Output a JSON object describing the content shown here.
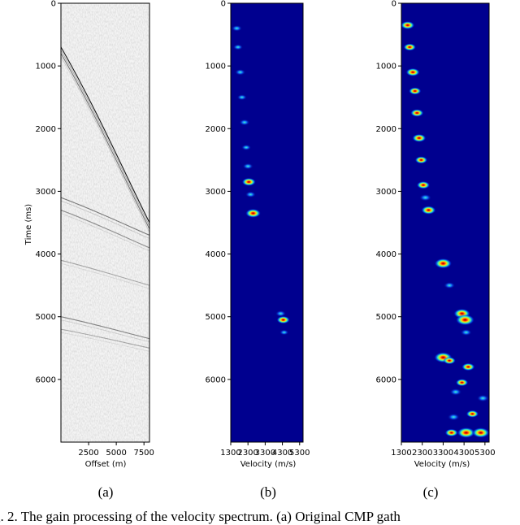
{
  "chart_data": [
    {
      "panel": "(a)",
      "type": "heatmap",
      "content": "seismic CMP gather (grayscale wiggle image)",
      "xlabel": "Offset (m)",
      "ylabel": "Time (ms)",
      "xticks": [
        "2500",
        "5000",
        "7500"
      ],
      "yticks": [
        "0",
        "1000",
        "2000",
        "3000",
        "4000",
        "5000",
        "6000"
      ],
      "xlim": [
        0,
        8000
      ],
      "ylim": [
        7000,
        0
      ],
      "colormap": "gray",
      "events": [
        {
          "t0": 700,
          "t_end": 3500,
          "strength": 0.9
        },
        {
          "t0": 800,
          "t_end": 3600,
          "strength": 0.5
        },
        {
          "t0": 3100,
          "t_end": 3700,
          "strength": 0.5
        },
        {
          "t0": 3300,
          "t_end": 3900,
          "strength": 0.4
        },
        {
          "t0": 4100,
          "t_end": 4500,
          "strength": 0.3
        },
        {
          "t0": 5000,
          "t_end": 5350,
          "strength": 0.45
        },
        {
          "t0": 5200,
          "t_end": 5500,
          "strength": 0.3
        }
      ]
    },
    {
      "panel": "(b)",
      "type": "heatmap",
      "content": "velocity spectrum",
      "xlabel": "Velocity (m/s)",
      "xticks": [
        "1300",
        "2300",
        "3300",
        "4300",
        "5300"
      ],
      "yticks": [
        "0",
        "1000",
        "2000",
        "3000",
        "4000",
        "5000",
        "6000"
      ],
      "xlim": [
        1300,
        5500
      ],
      "ylim": [
        7000,
        0
      ],
      "colormap": "jet",
      "peaks": [
        {
          "v": 1650,
          "t": 400,
          "a": 0.35
        },
        {
          "v": 1720,
          "t": 700,
          "a": 0.3
        },
        {
          "v": 1850,
          "t": 1100,
          "a": 0.35
        },
        {
          "v": 1950,
          "t": 1500,
          "a": 0.3
        },
        {
          "v": 2100,
          "t": 1900,
          "a": 0.35
        },
        {
          "v": 2200,
          "t": 2300,
          "a": 0.3
        },
        {
          "v": 2300,
          "t": 2600,
          "a": 0.35
        },
        {
          "v": 2350,
          "t": 2850,
          "a": 0.6
        },
        {
          "v": 2450,
          "t": 3050,
          "a": 0.35
        },
        {
          "v": 2600,
          "t": 3350,
          "a": 0.7
        },
        {
          "v": 4200,
          "t": 4950,
          "a": 0.35
        },
        {
          "v": 4350,
          "t": 5050,
          "a": 0.55
        },
        {
          "v": 4400,
          "t": 5250,
          "a": 0.25
        }
      ]
    },
    {
      "panel": "(c)",
      "type": "heatmap",
      "content": "gain-processed velocity spectrum",
      "xlabel": "Velocity (m/s)",
      "xticks": [
        "1300",
        "2300",
        "3300",
        "4300",
        "5300"
      ],
      "yticks": [
        "0",
        "1000",
        "2000",
        "3000",
        "4000",
        "5000",
        "6000"
      ],
      "xlim": [
        1300,
        5500
      ],
      "ylim": [
        7000,
        0
      ],
      "colormap": "jet",
      "peaks": [
        {
          "v": 1600,
          "t": 350,
          "a": 0.6
        },
        {
          "v": 1700,
          "t": 700,
          "a": 0.5
        },
        {
          "v": 1850,
          "t": 1100,
          "a": 0.6
        },
        {
          "v": 1950,
          "t": 1400,
          "a": 0.5
        },
        {
          "v": 2050,
          "t": 1750,
          "a": 0.55
        },
        {
          "v": 2150,
          "t": 2150,
          "a": 0.6
        },
        {
          "v": 2250,
          "t": 2500,
          "a": 0.5
        },
        {
          "v": 2350,
          "t": 2900,
          "a": 0.55
        },
        {
          "v": 2450,
          "t": 3100,
          "a": 0.45
        },
        {
          "v": 2600,
          "t": 3300,
          "a": 0.65
        },
        {
          "v": 3300,
          "t": 4150,
          "a": 0.85
        },
        {
          "v": 3600,
          "t": 4500,
          "a": 0.4
        },
        {
          "v": 4200,
          "t": 4950,
          "a": 0.8
        },
        {
          "v": 4350,
          "t": 5050,
          "a": 0.95
        },
        {
          "v": 4400,
          "t": 5250,
          "a": 0.4
        },
        {
          "v": 3300,
          "t": 5650,
          "a": 0.9
        },
        {
          "v": 3600,
          "t": 5700,
          "a": 0.5
        },
        {
          "v": 4500,
          "t": 5800,
          "a": 0.55
        },
        {
          "v": 4200,
          "t": 6050,
          "a": 0.5
        },
        {
          "v": 3900,
          "t": 6200,
          "a": 0.45
        },
        {
          "v": 5200,
          "t": 6300,
          "a": 0.45
        },
        {
          "v": 4700,
          "t": 6550,
          "a": 0.5
        },
        {
          "v": 3800,
          "t": 6600,
          "a": 0.45
        },
        {
          "v": 4400,
          "t": 6850,
          "a": 0.9
        },
        {
          "v": 5100,
          "t": 6850,
          "a": 0.85
        },
        {
          "v": 3700,
          "t": 6850,
          "a": 0.55
        }
      ]
    }
  ],
  "panel_labels": [
    "(a)",
    "(b)",
    "(c)"
  ],
  "caption": "g. 2. The gain processing of the velocity spectrum. (a) Original CMP gath"
}
